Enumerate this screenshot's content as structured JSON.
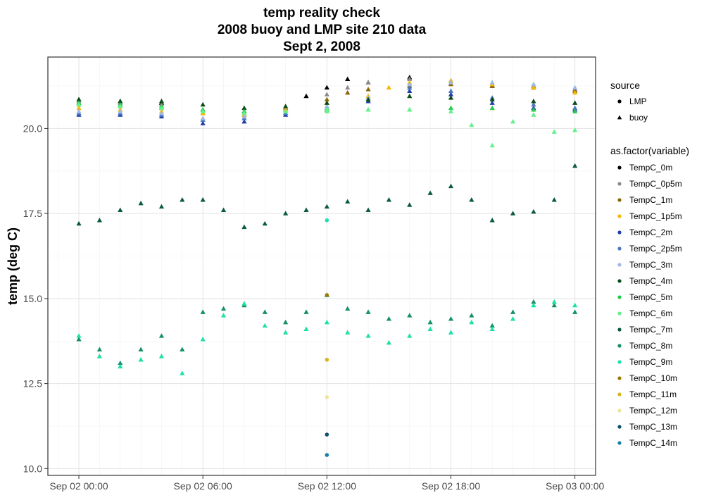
{
  "chart_data": {
    "type": "scatter",
    "title_lines": [
      "temp reality check",
      "2008 buoy and LMP site 210 data",
      "Sept 2, 2008"
    ],
    "xlabel": "",
    "ylabel": "temp (deg C)",
    "x_range_hours": [
      -1.5,
      25.0
    ],
    "ylim": [
      9.8,
      22.1
    ],
    "x_ticks": [
      {
        "hour": 0,
        "label": "Sep 02 00:00"
      },
      {
        "hour": 6,
        "label": "Sep 02 06:00"
      },
      {
        "hour": 12,
        "label": "Sep 02 12:00"
      },
      {
        "hour": 18,
        "label": "Sep 02 18:00"
      },
      {
        "hour": 24,
        "label": "Sep 03 00:00"
      }
    ],
    "y_ticks": [
      {
        "value": 10.0,
        "label": "10.0"
      },
      {
        "value": 12.5,
        "label": "12.5"
      },
      {
        "value": 15.0,
        "label": "15.0"
      },
      {
        "value": 17.5,
        "label": "17.5"
      },
      {
        "value": 20.0,
        "label": "20.0"
      }
    ],
    "grid": true,
    "legend_placement": "right",
    "shape_legend": {
      "title": "source",
      "entries": [
        {
          "label": "LMP",
          "shape": "circle"
        },
        {
          "label": "buoy",
          "shape": "triangle"
        }
      ]
    },
    "color_legend": {
      "title": "as.factor(variable)",
      "entries": [
        {
          "label": "TempC_0m",
          "color": "#000000"
        },
        {
          "label": "TempC_0p5m",
          "color": "#8c8c8c"
        },
        {
          "label": "TempC_1m",
          "color": "#8b6508"
        },
        {
          "label": "TempC_1p5m",
          "color": "#f5b800"
        },
        {
          "label": "TempC_2m",
          "color": "#1f3ea8"
        },
        {
          "label": "TempC_2p5m",
          "color": "#4a78c2"
        },
        {
          "label": "TempC_3m",
          "color": "#9fb8e8"
        },
        {
          "label": "TempC_4m",
          "color": "#0b4d16"
        },
        {
          "label": "TempC_5m",
          "color": "#22cc4a"
        },
        {
          "label": "TempC_6m",
          "color": "#66f08c"
        },
        {
          "label": "TempC_7m",
          "color": "#0a5a3e"
        },
        {
          "label": "TempC_8m",
          "color": "#13906a"
        },
        {
          "label": "TempC_9m",
          "color": "#1ee0a8"
        },
        {
          "label": "TempC_10m",
          "color": "#9a7a06"
        },
        {
          "label": "TempC_11m",
          "color": "#d7b51f"
        },
        {
          "label": "TempC_12m",
          "color": "#f2e39a"
        },
        {
          "label": "TempC_13m",
          "color": "#0d4f6c"
        },
        {
          "label": "TempC_14m",
          "color": "#1a7fa8"
        }
      ]
    },
    "series": [
      {
        "variable": "TempC_0m",
        "source": "buoy",
        "color": "#000000",
        "x": [
          0,
          2,
          4,
          6,
          8,
          10,
          11,
          12,
          13,
          14,
          16,
          18,
          20,
          22,
          24
        ],
        "y": [
          20.85,
          20.8,
          20.75,
          20.55,
          20.5,
          20.6,
          20.95,
          21.2,
          21.45,
          21.35,
          21.5,
          21.4,
          21.25,
          21.2,
          21.15
        ]
      },
      {
        "variable": "TempC_0p5m",
        "source": "buoy",
        "color": "#8c8c8c",
        "x": [
          0,
          2,
          4,
          6,
          8,
          10,
          12,
          13,
          14,
          16,
          18,
          20,
          22,
          24
        ],
        "y": [
          20.8,
          20.75,
          20.7,
          20.55,
          20.5,
          20.6,
          21.0,
          21.2,
          21.35,
          21.45,
          21.35,
          21.3,
          21.25,
          21.15
        ]
      },
      {
        "variable": "TempC_1m",
        "source": "buoy",
        "color": "#8b6508",
        "x": [
          0,
          2,
          4,
          6,
          8,
          10,
          12,
          13,
          14,
          16,
          18,
          20,
          22,
          24
        ],
        "y": [
          20.7,
          20.65,
          20.6,
          20.45,
          20.4,
          20.55,
          20.85,
          21.05,
          21.15,
          21.25,
          21.3,
          21.25,
          21.2,
          21.1
        ]
      },
      {
        "variable": "TempC_1p5m",
        "source": "buoy",
        "color": "#f5b800",
        "x": [
          0,
          2,
          4,
          6,
          8,
          10,
          12,
          14,
          15,
          16,
          18,
          20,
          22,
          24
        ],
        "y": [
          20.6,
          20.55,
          20.5,
          20.45,
          20.4,
          20.55,
          20.75,
          20.95,
          21.2,
          21.35,
          21.4,
          21.3,
          21.2,
          21.05
        ]
      },
      {
        "variable": "TempC_2m",
        "source": "buoy",
        "color": "#1f3ea8",
        "x": [
          0,
          2,
          4,
          6,
          8,
          10,
          12,
          14,
          16,
          18,
          20,
          22,
          24
        ],
        "y": [
          20.4,
          20.4,
          20.35,
          20.15,
          20.2,
          20.4,
          20.55,
          20.8,
          21.1,
          21.0,
          20.75,
          20.6,
          20.55
        ]
      },
      {
        "variable": "TempC_2p5m",
        "source": "buoy",
        "color": "#4a78c2",
        "x": [
          0,
          2,
          4,
          6,
          8,
          10,
          12,
          14,
          16,
          18,
          20,
          22,
          24
        ],
        "y": [
          20.45,
          20.45,
          20.4,
          20.25,
          20.3,
          20.45,
          20.6,
          20.85,
          21.2,
          21.1,
          20.9,
          20.7,
          20.6
        ]
      },
      {
        "variable": "TempC_3m",
        "source": "buoy",
        "color": "#9fb8e8",
        "x": [
          0,
          2,
          4,
          6,
          8,
          10,
          12,
          14,
          16,
          18,
          20,
          22,
          24
        ],
        "y": [
          20.5,
          20.5,
          20.45,
          20.3,
          20.35,
          20.5,
          20.65,
          20.9,
          21.3,
          21.35,
          21.35,
          21.3,
          21.2
        ]
      },
      {
        "variable": "TempC_4m",
        "source": "buoy",
        "color": "#0b4d16",
        "x": [
          0,
          2,
          4,
          6,
          8,
          10,
          12,
          14,
          16,
          18,
          20,
          22,
          24
        ],
        "y": [
          20.85,
          20.8,
          20.8,
          20.7,
          20.6,
          20.65,
          20.75,
          20.85,
          20.95,
          20.9,
          20.85,
          20.8,
          20.75
        ]
      },
      {
        "variable": "TempC_5m",
        "source": "buoy",
        "color": "#22cc4a",
        "x": [
          0,
          2,
          4,
          6,
          8,
          10,
          12,
          14,
          16,
          18,
          20,
          22,
          24
        ],
        "y": [
          20.75,
          20.7,
          20.65,
          20.55,
          20.5,
          20.5,
          20.55,
          20.55,
          20.55,
          20.6,
          20.6,
          20.55,
          20.5
        ]
      },
      {
        "variable": "TempC_6m",
        "source": "buoy",
        "color": "#66f08c",
        "x": [
          0,
          2,
          4,
          6,
          8,
          10,
          12,
          14,
          16,
          18,
          19,
          20,
          21,
          22,
          23,
          24
        ],
        "y": [
          20.7,
          20.65,
          20.6,
          20.5,
          20.45,
          20.5,
          20.5,
          20.55,
          20.55,
          20.5,
          20.1,
          19.5,
          20.2,
          20.4,
          19.9,
          19.95
        ]
      },
      {
        "variable": "TempC_7m",
        "source": "buoy",
        "color": "#0a5a3e",
        "x": [
          0,
          1,
          2,
          3,
          4,
          5,
          6,
          7,
          8,
          9,
          10,
          11,
          12,
          13,
          14,
          15,
          16,
          17,
          18,
          19,
          20,
          21,
          22,
          23,
          24
        ],
        "y": [
          17.2,
          17.3,
          17.6,
          17.8,
          17.7,
          17.9,
          17.9,
          17.6,
          17.1,
          17.2,
          17.5,
          17.6,
          17.7,
          17.85,
          17.6,
          17.9,
          17.75,
          18.1,
          18.3,
          17.9,
          17.3,
          17.5,
          17.55,
          17.9,
          18.9
        ]
      },
      {
        "variable": "TempC_8m",
        "source": "buoy",
        "color": "#13906a",
        "x": [
          0,
          1,
          2,
          3,
          4,
          5,
          6,
          7,
          8,
          9,
          10,
          11,
          12,
          13,
          14,
          15,
          16,
          17,
          18,
          19,
          20,
          21,
          22,
          23,
          24
        ],
        "y": [
          13.8,
          13.5,
          13.1,
          13.5,
          13.9,
          13.5,
          14.6,
          14.7,
          14.8,
          14.6,
          14.3,
          14.6,
          15.1,
          14.7,
          14.6,
          14.4,
          14.5,
          14.3,
          14.4,
          14.5,
          14.2,
          14.6,
          14.9,
          14.8,
          14.6
        ]
      },
      {
        "variable": "TempC_9m",
        "source": "buoy",
        "color": "#1ee0a8",
        "x": [
          0,
          1,
          2,
          3,
          4,
          5,
          6,
          7,
          8,
          9,
          10,
          11,
          12,
          13,
          14,
          15,
          16,
          17,
          18,
          19,
          20,
          21,
          22,
          23,
          24
        ],
        "y": [
          13.9,
          13.3,
          13.0,
          13.2,
          13.3,
          12.8,
          13.8,
          14.5,
          14.85,
          14.2,
          14.0,
          14.1,
          14.3,
          14.0,
          13.9,
          13.7,
          13.9,
          14.1,
          14.0,
          14.3,
          14.1,
          14.4,
          14.8,
          14.9,
          14.8
        ]
      },
      {
        "variable": "TempC_6m",
        "source": "LMP",
        "color": "#66f08c",
        "x": [
          12
        ],
        "y": [
          20.55
        ]
      },
      {
        "variable": "TempC_9m",
        "source": "LMP",
        "color": "#1ee0a8",
        "x": [
          12
        ],
        "y": [
          17.3
        ]
      },
      {
        "variable": "TempC_10m",
        "source": "LMP",
        "color": "#9a7a06",
        "x": [
          12
        ],
        "y": [
          15.1
        ]
      },
      {
        "variable": "TempC_11m",
        "source": "LMP",
        "color": "#d7b51f",
        "x": [
          12
        ],
        "y": [
          13.2
        ]
      },
      {
        "variable": "TempC_12m",
        "source": "LMP",
        "color": "#f2e39a",
        "x": [
          12
        ],
        "y": [
          12.1
        ]
      },
      {
        "variable": "TempC_13m",
        "source": "LMP",
        "color": "#0d4f6c",
        "x": [
          12
        ],
        "y": [
          11.0
        ]
      },
      {
        "variable": "TempC_14m",
        "source": "LMP",
        "color": "#1a7fa8",
        "x": [
          12
        ],
        "y": [
          10.4
        ]
      }
    ]
  }
}
